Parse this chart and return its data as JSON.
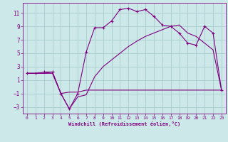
{
  "xlabel": "Windchill (Refroidissement éolien,°C)",
  "bg_color": "#cce8e8",
  "grid_color": "#aacccc",
  "line_color": "#800080",
  "xlim": [
    -0.5,
    23.5
  ],
  "ylim": [
    -4,
    12.5
  ],
  "xticks": [
    0,
    1,
    2,
    3,
    4,
    5,
    6,
    7,
    8,
    9,
    10,
    11,
    12,
    13,
    14,
    15,
    16,
    17,
    18,
    19,
    20,
    21,
    22,
    23
  ],
  "yticks": [
    -3,
    -1,
    1,
    3,
    5,
    7,
    9,
    11
  ],
  "series1_x": [
    0,
    1,
    2,
    3,
    4,
    5,
    6,
    7,
    8,
    9,
    10,
    11,
    12,
    13,
    14,
    15,
    16,
    17,
    18,
    19,
    20,
    21,
    22,
    23
  ],
  "series1_y": [
    2.0,
    2.0,
    2.2,
    2.2,
    -1.0,
    -3.3,
    -1.0,
    5.2,
    8.8,
    8.8,
    9.8,
    11.5,
    11.7,
    11.2,
    11.5,
    10.5,
    9.2,
    9.0,
    8.0,
    6.5,
    6.2,
    9.0,
    8.0,
    -0.5
  ],
  "series2_x": [
    0,
    1,
    2,
    3,
    4,
    5,
    6,
    7,
    8,
    9,
    10,
    11,
    12,
    13,
    14,
    15,
    16,
    17,
    18,
    19,
    20,
    21,
    22,
    23
  ],
  "series2_y": [
    2.0,
    2.0,
    2.0,
    2.0,
    -1.0,
    -0.8,
    -0.8,
    -0.5,
    -0.5,
    -0.5,
    -0.5,
    -0.5,
    -0.5,
    -0.5,
    -0.5,
    -0.5,
    -0.5,
    -0.5,
    -0.5,
    -0.5,
    -0.5,
    -0.5,
    -0.5,
    -0.5
  ],
  "series3_x": [
    0,
    1,
    2,
    3,
    4,
    5,
    6,
    7,
    8,
    9,
    10,
    11,
    12,
    13,
    14,
    15,
    16,
    17,
    18,
    19,
    20,
    21,
    22,
    23
  ],
  "series3_y": [
    2.0,
    2.0,
    2.0,
    2.2,
    -1.0,
    -3.3,
    -1.5,
    -1.2,
    1.5,
    3.0,
    4.0,
    5.0,
    6.0,
    6.8,
    7.5,
    8.0,
    8.5,
    9.0,
    9.2,
    8.0,
    7.5,
    6.5,
    5.5,
    -0.5
  ]
}
